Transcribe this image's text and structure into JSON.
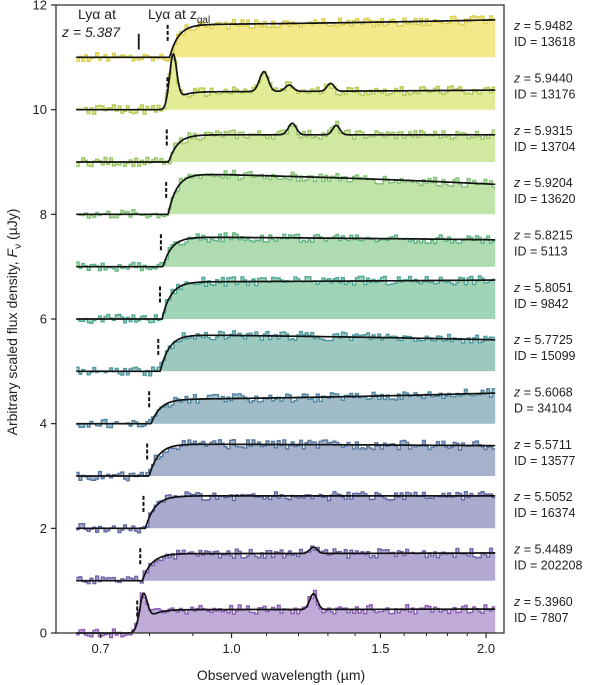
{
  "chart_data": {
    "type": "line",
    "title": "",
    "xlabel": "Observed wavelength (µm)",
    "ylabel_main": "Arbitrary scaled flux density, ",
    "ylabel_sym": "F",
    "ylabel_sub": "ν",
    "ylabel_unit": " (µJy)",
    "xscale": "log",
    "xlim": [
      0.62,
      2.1
    ],
    "ylim": [
      0,
      12
    ],
    "xticks": [
      {
        "v": 0.7,
        "label": "0.7"
      },
      {
        "v": 1.0,
        "label": "1.0"
      },
      {
        "v": 1.5,
        "label": "1.5"
      },
      {
        "v": 2.0,
        "label": "2.0"
      }
    ],
    "yticks": [
      {
        "v": 0,
        "label": "0"
      },
      {
        "v": 2,
        "label": "2"
      },
      {
        "v": 4,
        "label": "4"
      },
      {
        "v": 6,
        "label": "6"
      },
      {
        "v": 8,
        "label": "8"
      },
      {
        "v": 10,
        "label": "10"
      },
      {
        "v": 12,
        "label": "12"
      }
    ],
    "annotations": {
      "lya_zgal_text": "Lyα at z",
      "lya_zgal_sub": "gal",
      "lya_fixed_line1": "Lyα at",
      "lya_fixed_line2": "z = 5.387",
      "lya_fixed_z": 5.387
    },
    "series": [
      {
        "z": 5.9482,
        "z_label": "z = 5.9482",
        "id_label": "ID = 13618",
        "base": 11.0,
        "cont": 0.65,
        "slope": 0.3,
        "emission": [],
        "color": "#f3e98a",
        "edge": "#d8cf4e"
      },
      {
        "z": 5.944,
        "z_label": "z = 5.9440",
        "id_label": "ID = 13176",
        "base": 10.0,
        "cont": 0.35,
        "slope": 0.2,
        "lya_peak": 0.95,
        "emission": [
          {
            "x": 1.092,
            "h": 0.38
          },
          {
            "x": 1.17,
            "h": 0.12
          },
          {
            "x": 1.31,
            "h": 0.15
          }
        ],
        "color": "#e2eb95",
        "edge": "#b9c955"
      },
      {
        "z": 5.9315,
        "z_label": "z = 5.9315",
        "id_label": "ID = 13704",
        "base": 9.0,
        "cont": 0.52,
        "slope": 0.0,
        "emission": [
          {
            "x": 1.18,
            "h": 0.22
          },
          {
            "x": 1.33,
            "h": 0.18
          }
        ],
        "color": "#d1e8a0",
        "edge": "#9cc568"
      },
      {
        "z": 5.9204,
        "z_label": "z = 5.9204",
        "id_label": "ID = 13620",
        "base": 8.0,
        "cont": 0.72,
        "slope": -0.6,
        "emission": [],
        "color": "#bfe3a8",
        "edge": "#83c27a"
      },
      {
        "z": 5.8215,
        "z_label": "z = 5.8215",
        "id_label": "ID = 5113",
        "base": 7.0,
        "cont": 0.55,
        "slope": -0.2,
        "emission": [],
        "color": "#aedcb0",
        "edge": "#5fb486"
      },
      {
        "z": 5.8051,
        "z_label": "z = 5.8051",
        "id_label": "ID = 9842",
        "base": 6.0,
        "cont": 0.72,
        "slope": 0.1,
        "emission": [],
        "color": "#a0d4b6",
        "edge": "#4ea799"
      },
      {
        "z": 5.7725,
        "z_label": "z = 5.7725",
        "id_label": "ID = 15099",
        "base": 5.0,
        "cont": 0.67,
        "slope": -0.3,
        "emission": [],
        "color": "#9cc9bf",
        "edge": "#4e98a0"
      },
      {
        "z": 5.6068,
        "z_label": "z = 5.6068",
        "id_label": "D = 34104",
        "base": 4.0,
        "cont": 0.5,
        "slope": 0.5,
        "emission": [],
        "color": "#a0bcc9",
        "edge": "#4f86a0"
      },
      {
        "z": 5.5711,
        "z_label": "z = 5.5711",
        "id_label": "ID = 13577",
        "base": 3.0,
        "cont": 0.6,
        "slope": -0.1,
        "emission": [],
        "color": "#a6b2cc",
        "edge": "#56759f"
      },
      {
        "z": 5.5052,
        "z_label": "z = 5.5052",
        "id_label": "ID = 16374",
        "base": 2.0,
        "cont": 0.62,
        "slope": 0.0,
        "emission": [],
        "color": "#aaaacf",
        "edge": "#5d68a3"
      },
      {
        "z": 5.4489,
        "z_label": "z = 5.4489",
        "id_label": "ID = 202208",
        "base": 1.0,
        "cont": 0.52,
        "slope": 0.05,
        "emission": [
          {
            "x": 1.25,
            "h": 0.12
          }
        ],
        "color": "#b2a8d2",
        "edge": "#7363a8"
      },
      {
        "z": 5.396,
        "z_label": "z = 5.3960",
        "id_label": "ID = 7807",
        "base": 0.0,
        "cont": 0.45,
        "slope": 0.05,
        "lya_peak": 0.6,
        "emission": [
          {
            "x": 1.25,
            "h": 0.3
          }
        ],
        "color": "#bfaad8",
        "edge": "#8a5fb2"
      }
    ]
  }
}
